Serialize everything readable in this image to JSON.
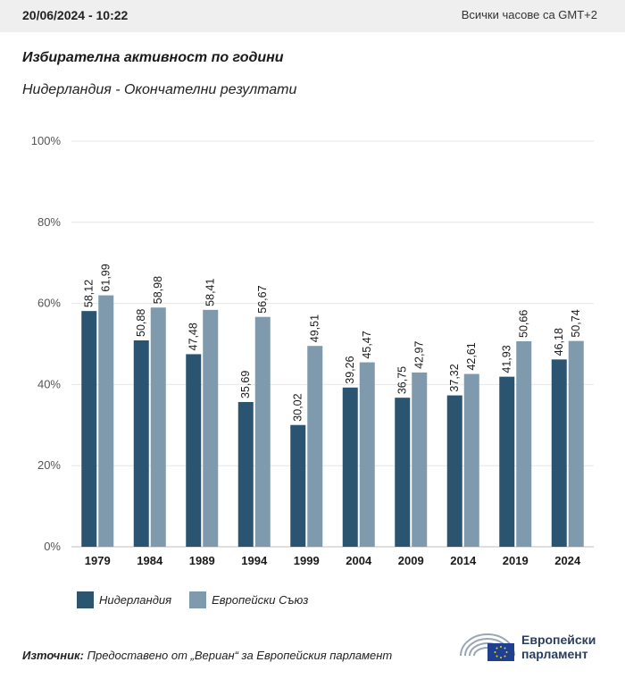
{
  "header": {
    "timestamp": "20/06/2024 - 10:22",
    "timezone_note": "Всички часове са GMT+2"
  },
  "title": "Избирателна активност по години",
  "subtitle": "Нидерландия - Окончателни резултати",
  "chart_data": {
    "type": "bar",
    "categories": [
      "1979",
      "1984",
      "1989",
      "1994",
      "1999",
      "2004",
      "2009",
      "2014",
      "2019",
      "2024"
    ],
    "series": [
      {
        "name": "Нидерландия",
        "color": "#2b5470",
        "values": [
          58.12,
          50.88,
          47.48,
          35.69,
          30.02,
          39.26,
          36.75,
          37.32,
          41.93,
          46.18
        ],
        "labels": [
          "58,12",
          "50,88",
          "47,48",
          "35,69",
          "30,02",
          "39,26",
          "36,75",
          "37,32",
          "41,93",
          "46,18"
        ]
      },
      {
        "name": "Европейски Съюз",
        "color": "#7f9aac",
        "values": [
          61.99,
          58.98,
          58.41,
          56.67,
          49.51,
          45.47,
          42.97,
          42.61,
          50.66,
          50.74
        ],
        "labels": [
          "61,99",
          "58,98",
          "58,41",
          "56,67",
          "49,51",
          "45,47",
          "42,97",
          "42,61",
          "50,66",
          "50,74"
        ]
      }
    ],
    "ylim": [
      0,
      100
    ],
    "yticks": [
      0,
      20,
      40,
      60,
      80,
      100
    ],
    "ytick_labels": [
      "0%",
      "20%",
      "40%",
      "60%",
      "80%",
      "100%"
    ],
    "grid": true,
    "legend_position": "bottom-left"
  },
  "source": {
    "label": "Източник:",
    "text": " Предоставено от „Вериан“ за Европейския парламент"
  },
  "logo": {
    "line1": "Европейски",
    "line2": "парламент"
  }
}
